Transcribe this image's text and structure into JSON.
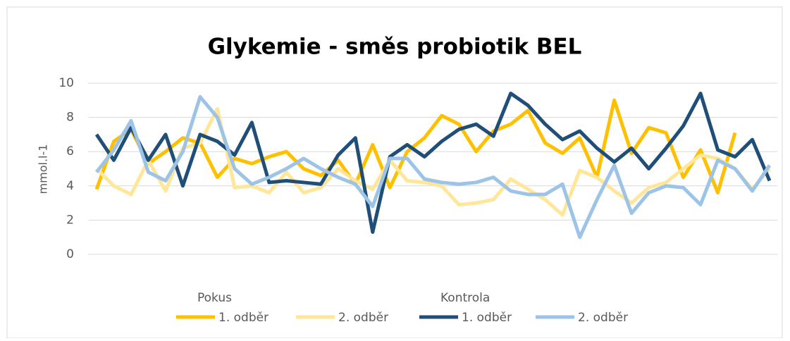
{
  "chart_data": {
    "type": "line",
    "title": "Glykemie - směs probiotik BEL",
    "y_label": "mmol.l-1",
    "categories": [
      null,
      null,
      null,
      null,
      null,
      null,
      null,
      null,
      null,
      null,
      null,
      null,
      null,
      null,
      null,
      null,
      null,
      null,
      null,
      null,
      null,
      null,
      null,
      null,
      null,
      null,
      null,
      null,
      null,
      null,
      null,
      null,
      null,
      null,
      null,
      null,
      null,
      null,
      null,
      null
    ],
    "ylim": [
      0,
      10
    ],
    "yticks": [
      0,
      2,
      4,
      6,
      8,
      10
    ],
    "grid": true,
    "legend": "bottom",
    "series": [
      {
        "name": "1. odběr",
        "group": "Pokus",
        "color": "#ffc000",
        "values": [
          3.8,
          6.6,
          7.3,
          5.3,
          6.0,
          6.8,
          6.5,
          4.5,
          5.6,
          5.3,
          5.7,
          6.0,
          5.0,
          4.6,
          5.5,
          4.1,
          6.4,
          3.9,
          6.0,
          6.8,
          8.1,
          7.6,
          6.0,
          7.2,
          7.6,
          8.4,
          6.5,
          5.9,
          6.8,
          4.5,
          9.0,
          5.9,
          7.4,
          7.1,
          4.5,
          6.1,
          3.6,
          7.1,
          null,
          null
        ]
      },
      {
        "name": "2. odběr",
        "group": "Pokus",
        "color": "#ffe699",
        "values": [
          5.0,
          4.0,
          3.5,
          5.5,
          3.7,
          6.2,
          6.5,
          8.5,
          3.9,
          4.0,
          3.6,
          4.8,
          3.6,
          3.9,
          5.0,
          4.3,
          3.8,
          5.5,
          4.3,
          4.2,
          4.0,
          2.9,
          3.0,
          3.2,
          4.4,
          3.8,
          3.2,
          2.3,
          4.9,
          4.5,
          3.7,
          3.0,
          3.9,
          4.2,
          5.0,
          5.8,
          5.6,
          5.0,
          3.8,
          5.0
        ]
      },
      {
        "name": "1. odběr",
        "group": "Kontrola",
        "color": "#1f4e79",
        "values": [
          7.0,
          5.5,
          7.4,
          5.5,
          7.0,
          4.0,
          7.0,
          6.6,
          5.8,
          7.7,
          4.2,
          4.3,
          4.2,
          4.1,
          5.8,
          6.8,
          1.3,
          5.7,
          6.4,
          5.7,
          6.6,
          7.3,
          7.6,
          6.9,
          9.4,
          8.7,
          7.6,
          6.7,
          7.2,
          6.2,
          5.4,
          6.2,
          5.0,
          6.2,
          7.5,
          9.4,
          6.1,
          5.7,
          6.7,
          4.3
        ]
      },
      {
        "name": "2. odběr",
        "group": "Kontrola",
        "color": "#9dc3e6",
        "values": [
          4.8,
          6.1,
          7.8,
          4.8,
          4.3,
          6.0,
          9.2,
          8.0,
          5.0,
          4.1,
          4.5,
          5.0,
          5.6,
          5.0,
          4.5,
          4.1,
          2.8,
          5.6,
          5.6,
          4.4,
          4.2,
          4.1,
          4.2,
          4.5,
          3.7,
          3.5,
          3.5,
          4.1,
          1.0,
          3.2,
          5.2,
          2.4,
          3.6,
          4.0,
          3.9,
          2.9,
          5.5,
          5.0,
          3.7,
          5.2
        ]
      }
    ]
  }
}
